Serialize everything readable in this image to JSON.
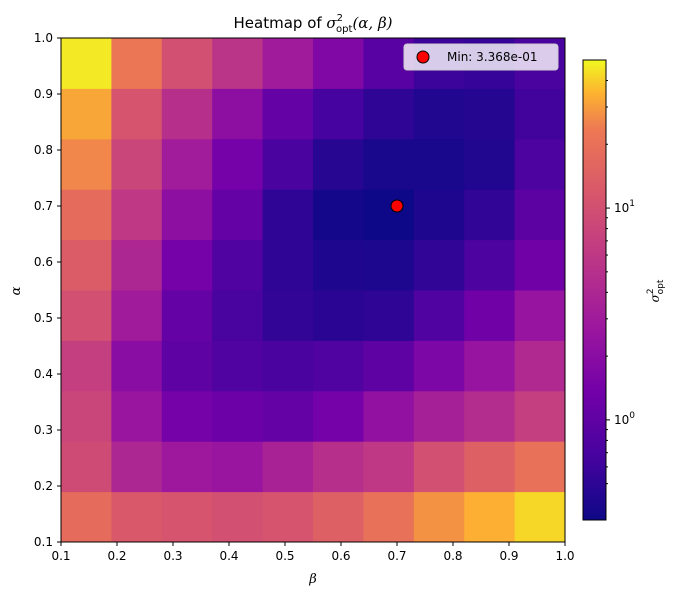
{
  "chart_data": {
    "type": "heatmap",
    "title_prefix": "Heatmap of ",
    "title_math": "σ²opt(α, β)",
    "xlabel": "β",
    "ylabel": "α",
    "x_centers": [
      0.145,
      0.235,
      0.325,
      0.415,
      0.505,
      0.595,
      0.685,
      0.775,
      0.865,
      0.955
    ],
    "y_centers": [
      0.145,
      0.235,
      0.325,
      0.415,
      0.505,
      0.595,
      0.685,
      0.775,
      0.865,
      0.955
    ],
    "xlim": [
      0.1,
      1.0
    ],
    "ylim": [
      0.1,
      1.0
    ],
    "x_ticks": [
      "0.1",
      "0.2",
      "0.3",
      "0.4",
      "0.5",
      "0.6",
      "0.7",
      "0.8",
      "0.9",
      "1.0"
    ],
    "y_ticks": [
      "0.1",
      "0.2",
      "0.3",
      "0.4",
      "0.5",
      "0.6",
      "0.7",
      "0.8",
      "0.9",
      "1.0"
    ],
    "z_rows_bottom_to_top": [
      [
        18,
        12,
        11,
        10,
        11,
        14,
        20,
        28,
        34,
        42
      ],
      [
        9,
        4,
        2.8,
        2.6,
        3.6,
        5,
        6,
        10,
        14,
        20
      ],
      [
        8,
        2.6,
        1.4,
        1.2,
        1.1,
        1.4,
        2.3,
        3.4,
        4.6,
        7
      ],
      [
        7,
        2,
        1.0,
        0.8,
        0.72,
        0.8,
        1.0,
        1.6,
        2.5,
        4.2
      ],
      [
        10,
        3,
        1.1,
        0.7,
        0.53,
        0.48,
        0.5,
        0.8,
        1.3,
        2.5
      ],
      [
        13,
        4,
        1.4,
        0.8,
        0.5,
        0.42,
        0.41,
        0.52,
        0.74,
        1.3
      ],
      [
        18,
        6,
        2.1,
        1.1,
        0.5,
        0.37,
        0.3368,
        0.42,
        0.52,
        0.95
      ],
      [
        26,
        8,
        3.1,
        1.4,
        0.72,
        0.46,
        0.39,
        0.39,
        0.43,
        0.75
      ],
      [
        32,
        11,
        5,
        2.1,
        1.1,
        0.68,
        0.5,
        0.43,
        0.45,
        0.64
      ],
      [
        46,
        22,
        10,
        5.5,
        3,
        1.7,
        0.9,
        0.6,
        0.55,
        0.72
      ]
    ],
    "colormap": "plasma",
    "color_scale": "log",
    "color_range": [
      0.3368,
      50
    ],
    "colorbar_ticks": [
      {
        "value": 1,
        "base": "10",
        "exp": "0"
      },
      {
        "value": 10,
        "base": "10",
        "exp": "1"
      }
    ],
    "colorbar_label": "σ²opt",
    "minimum_point": {
      "x": 0.7,
      "y": 0.7,
      "value": 0.3368
    },
    "legend": {
      "label": "Min: 3.368e-01",
      "position": "top-right"
    },
    "marker_color": "#ff0000"
  }
}
